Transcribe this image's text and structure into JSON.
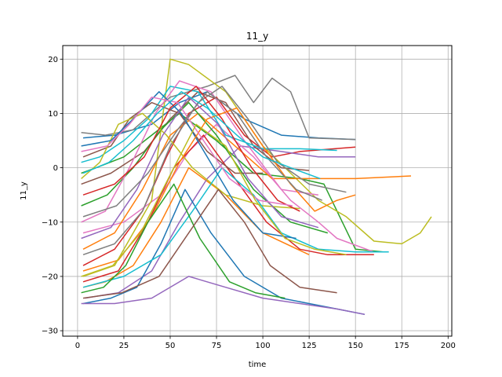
{
  "chart_data": {
    "type": "line",
    "title": "11_y",
    "xlabel": "time",
    "ylabel": "11_y",
    "xlim": [
      -8,
      202
    ],
    "ylim": [
      -31,
      22.5
    ],
    "x_ticks": [
      0,
      25,
      50,
      75,
      100,
      125,
      150,
      175,
      200
    ],
    "y_ticks": [
      -30,
      -20,
      -10,
      0,
      10,
      20
    ],
    "grid": true,
    "legend": "none",
    "colors": [
      "#1f77b4",
      "#ff7f0e",
      "#2ca02c",
      "#d62728",
      "#9467bd",
      "#8c564b",
      "#e377c2",
      "#7f7f7f",
      "#bcbd22",
      "#17becf"
    ],
    "series": [
      {
        "x": [
          3,
          20,
          40,
          55,
          70,
          90,
          110,
          130,
          150
        ],
        "y": [
          5.5,
          6,
          8,
          12,
          14,
          9,
          6,
          5.5,
          5.2
        ]
      },
      {
        "x": [
          3,
          15,
          30,
          45,
          60,
          80,
          100,
          125
        ],
        "y": [
          -22,
          -21,
          -18,
          -10,
          0,
          -5,
          -12,
          -16
        ]
      },
      {
        "x": [
          2,
          10,
          25,
          40,
          55,
          75,
          95,
          120,
          133,
          150,
          165
        ],
        "y": [
          -1,
          0,
          2,
          6,
          10,
          5,
          -1,
          -2,
          -3,
          -15,
          -15.5
        ]
      },
      {
        "x": [
          3,
          20,
          35,
          48,
          60,
          75,
          90,
          105,
          120,
          150
        ],
        "y": [
          -18,
          -15,
          -8,
          2,
          10,
          13,
          6,
          2,
          3,
          3.8
        ]
      },
      {
        "x": [
          4,
          22,
          40,
          55,
          70,
          88,
          110,
          130,
          150
        ],
        "y": [
          -24,
          -23,
          -19,
          -10,
          -2,
          4,
          3,
          2,
          2
        ]
      },
      {
        "x": [
          2,
          18,
          36,
          50,
          65,
          80,
          95,
          110,
          125
        ],
        "y": [
          -3,
          -1,
          3,
          9,
          14,
          12,
          4,
          0,
          -0.5
        ]
      },
      {
        "x": [
          3,
          25,
          45,
          60,
          75,
          95,
          115,
          130,
          140,
          160
        ],
        "y": [
          -12,
          -10,
          -5,
          3,
          8,
          2,
          -6,
          -10,
          -13,
          -15.5
        ]
      },
      {
        "x": [
          2,
          15,
          30,
          50,
          70,
          85,
          95,
          105,
          115,
          125,
          150
        ],
        "y": [
          6.5,
          6,
          7,
          13,
          15,
          17,
          12,
          16.5,
          14,
          5.5,
          5.2
        ]
      },
      {
        "x": [
          3,
          20,
          40,
          50,
          60,
          80,
          100,
          130,
          145,
          160,
          175,
          185,
          191
        ],
        "y": [
          -20,
          -18,
          -6,
          20,
          19,
          14,
          4,
          -6,
          -9,
          -13.5,
          -14,
          -12,
          -9
        ]
      },
      {
        "x": [
          2,
          12,
          25,
          38,
          50,
          65,
          80,
          100,
          120,
          140
        ],
        "y": [
          1,
          2,
          5,
          9,
          15,
          14,
          6,
          3.5,
          3.5,
          3.2
        ]
      },
      {
        "x": [
          3,
          18,
          32,
          45,
          58,
          72,
          90,
          110,
          125,
          140,
          155
        ],
        "y": [
          -25,
          -24,
          -22,
          -14,
          -4,
          -12,
          -20,
          -24,
          -25,
          -26,
          -27
        ]
      },
      {
        "x": [
          3,
          20,
          35,
          50,
          65,
          85,
          105,
          130,
          150,
          180
        ],
        "y": [
          -15,
          -12,
          -4,
          6,
          10,
          4,
          -2,
          -2,
          -2,
          -1.5
        ]
      },
      {
        "x": [
          2,
          16,
          30,
          45,
          60,
          75,
          95,
          115,
          135
        ],
        "y": [
          -7,
          -5,
          0,
          7,
          12,
          6,
          -4,
          -10,
          -12
        ]
      },
      {
        "x": [
          3,
          22,
          38,
          52,
          68,
          85,
          102,
          120,
          135,
          160
        ],
        "y": [
          -21,
          -19,
          -10,
          0,
          6,
          -2,
          -10,
          -15,
          -16,
          -16
        ]
      },
      {
        "x": [
          2,
          20,
          40,
          60,
          80,
          100,
          120,
          140,
          155
        ],
        "y": [
          -25,
          -25,
          -24,
          -20,
          -22,
          -24,
          -25,
          -26,
          -27
        ]
      },
      {
        "x": [
          3,
          18,
          28,
          40,
          55,
          70,
          85,
          100
        ],
        "y": [
          2,
          4,
          9,
          12,
          10,
          3,
          -1,
          -1
        ]
      },
      {
        "x": [
          2,
          15,
          28,
          42,
          55,
          72,
          90,
          110,
          130
        ],
        "y": [
          -10,
          -8,
          0,
          10,
          16,
          14,
          5,
          -4,
          -5
        ]
      },
      {
        "x": [
          3,
          20,
          35,
          50,
          65,
          78,
          92,
          108,
          125,
          145
        ],
        "y": [
          -16,
          -14,
          -8,
          4,
          12,
          15,
          9,
          1,
          -3,
          -4.5
        ]
      },
      {
        "x": [
          2,
          12,
          22,
          35,
          48,
          62,
          80,
          100,
          120
        ],
        "y": [
          -2,
          1,
          8,
          10,
          6,
          0,
          -5,
          -7,
          -7.5
        ]
      },
      {
        "x": [
          3,
          25,
          45,
          62,
          78,
          95,
          110,
          130,
          150,
          168
        ],
        "y": [
          -22,
          -20,
          -16,
          -8,
          0,
          -5,
          -12,
          -15,
          -15.5,
          -15.5
        ]
      },
      {
        "x": [
          2,
          18,
          30,
          44,
          56,
          70,
          84,
          100,
          118
        ],
        "y": [
          4,
          5,
          9,
          14,
          10,
          2,
          -6,
          -12,
          -13
        ]
      },
      {
        "x": [
          3,
          22,
          40,
          55,
          70,
          86,
          100,
          115,
          128,
          140,
          150
        ],
        "y": [
          -19,
          -17,
          -9,
          1,
          9,
          11,
          4,
          -3,
          -8,
          -6,
          -5
        ]
      },
      {
        "x": [
          2,
          14,
          26,
          38,
          52,
          66,
          82,
          96,
          112
        ],
        "y": [
          -23,
          -22,
          -18,
          -10,
          -3,
          -13,
          -21,
          -23,
          -24
        ]
      },
      {
        "x": [
          3,
          20,
          36,
          50,
          64,
          78,
          94,
          108,
          120
        ],
        "y": [
          -5,
          -3,
          2,
          11,
          15,
          9,
          0,
          -6,
          -8
        ]
      },
      {
        "x": [
          2,
          18,
          32,
          46,
          60,
          76,
          92,
          110,
          130
        ],
        "y": [
          -13,
          -11,
          -4,
          6,
          13,
          8,
          -2,
          -9,
          -11
        ]
      },
      {
        "x": [
          3,
          24,
          44,
          60,
          76,
          90,
          104,
          120,
          140
        ],
        "y": [
          -24,
          -23,
          -20,
          -12,
          -4,
          -10,
          -18,
          -22,
          -23
        ]
      },
      {
        "x": [
          2,
          16,
          28,
          40,
          54,
          68,
          82,
          98,
          116
        ],
        "y": [
          3,
          4,
          8,
          13,
          12,
          5,
          -2,
          -6,
          -7
        ]
      },
      {
        "x": [
          3,
          21,
          38,
          54,
          70,
          86,
          102,
          118,
          132
        ],
        "y": [
          -9,
          -7,
          -1,
          7,
          14,
          10,
          2,
          -4,
          -6
        ]
      },
      {
        "x": [
          2,
          19,
          34,
          49,
          64,
          80,
          96,
          112,
          128,
          145
        ],
        "y": [
          -20,
          -18,
          -12,
          -2,
          8,
          4,
          -6,
          -13,
          -15,
          -16
        ]
      },
      {
        "x": [
          3,
          17,
          30,
          43,
          56,
          70,
          86,
          100,
          115,
          131
        ],
        "y": [
          -1,
          1,
          5,
          10,
          14,
          11,
          6,
          2,
          0,
          -2
        ]
      }
    ]
  }
}
